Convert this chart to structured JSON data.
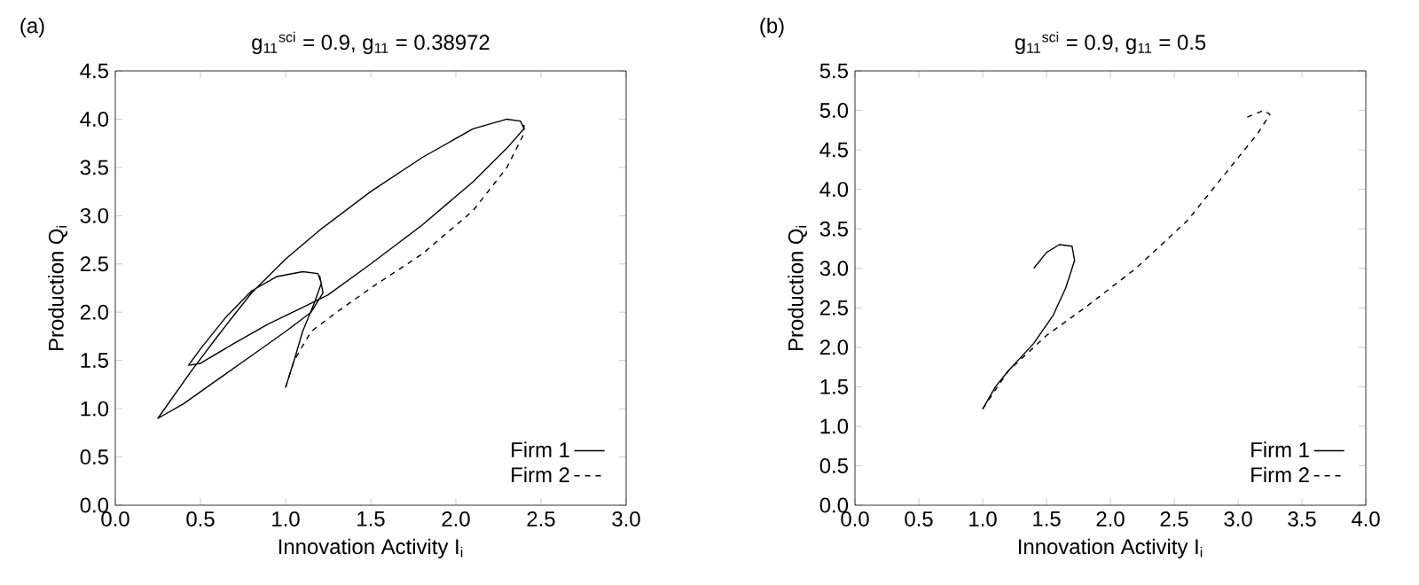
{
  "chart_data": [
    {
      "type": "line",
      "title": "g$_{11}$$^{sci}$ = 0.9,  g$_{11}$ = 0.38972",
      "xlabel": "Innovation Activity I$_{i}$",
      "ylabel": "Production Q$_{i}$",
      "annotations": [
        "(a)"
      ],
      "xlim": [
        0,
        3
      ],
      "ylim": [
        0,
        4.5
      ],
      "xticks": [
        {
          "value": 0,
          "label": "0.0"
        },
        0.5,
        {
          "value": 1,
          "label": "1.0"
        },
        1.5,
        {
          "value": 2,
          "label": "2.0"
        },
        2.5,
        {
          "value": 3,
          "label": "3.0"
        }
      ],
      "yticks": [
        {
          "value": 0,
          "label": "0.0"
        },
        0.5,
        {
          "value": 1,
          "label": "1.0"
        },
        1.5,
        {
          "value": 2,
          "label": "2.0"
        },
        2.5,
        {
          "value": 3,
          "label": "3.0"
        },
        3.5,
        {
          "value": 4,
          "label": "4.0"
        },
        4.5
      ],
      "legend": "bottom right",
      "series": [
        {
          "name": "Firm 1",
          "color": "#000000",
          "line_style": "solid",
          "x": [
            1.0,
            1.05,
            1.1,
            1.17,
            1.21,
            1.19,
            1.1,
            0.95,
            0.8,
            0.65,
            0.5,
            0.43,
            0.5,
            0.7,
            0.9,
            1.1,
            1.25,
            1.5,
            1.8,
            2.1,
            2.3,
            2.4,
            2.38,
            2.3,
            2.1,
            1.8,
            1.5,
            1.2,
            1.0,
            0.8,
            0.6,
            0.45,
            0.25,
            0.4,
            0.6,
            0.8,
            1.0,
            1.15,
            1.22,
            1.2
          ],
          "values": [
            1.22,
            1.5,
            1.8,
            2.1,
            2.3,
            2.4,
            2.42,
            2.37,
            2.22,
            1.95,
            1.62,
            1.45,
            1.47,
            1.68,
            1.88,
            2.05,
            2.18,
            2.5,
            2.9,
            3.35,
            3.7,
            3.9,
            3.98,
            4.0,
            3.9,
            3.6,
            3.25,
            2.85,
            2.55,
            2.2,
            1.75,
            1.4,
            0.9,
            1.05,
            1.3,
            1.55,
            1.8,
            2.0,
            2.2,
            2.38
          ]
        },
        {
          "name": "Firm 2",
          "color": "#000000",
          "line_style": "dashed",
          "x": [
            1.0,
            1.05,
            1.15,
            1.3,
            1.5,
            1.8,
            2.1,
            2.3,
            2.4,
            2.4
          ],
          "values": [
            1.22,
            1.5,
            1.8,
            2.0,
            2.25,
            2.6,
            3.05,
            3.5,
            3.85,
            3.95
          ]
        }
      ]
    },
    {
      "type": "line",
      "title": "g$_{11}$$^{sci}$ = 0.9,  g$_{11}$ = 0.5",
      "xlabel": "Innovation Activity I$_{i}$",
      "ylabel": "Production Q$_{i}$",
      "annotations": [
        "(b)"
      ],
      "xlim": [
        0,
        4
      ],
      "ylim": [
        0,
        5.5
      ],
      "xticks": [
        {
          "value": 0,
          "label": "0.0"
        },
        0.5,
        {
          "value": 1,
          "label": "1.0"
        },
        1.5,
        {
          "value": 2,
          "label": "2.0"
        },
        2.5,
        {
          "value": 3,
          "label": "3.0"
        },
        3.5,
        {
          "value": 4,
          "label": "4.0"
        }
      ],
      "yticks": [
        {
          "value": 0,
          "label": "0.0"
        },
        0.5,
        {
          "value": 1,
          "label": "1.0"
        },
        1.5,
        {
          "value": 2,
          "label": "2.0"
        },
        2.5,
        {
          "value": 3,
          "label": "3.0"
        },
        3.5,
        {
          "value": 4,
          "label": "4.0"
        },
        4.5,
        {
          "value": 5,
          "label": "5.0"
        },
        5.5
      ],
      "legend": "bottom right",
      "series": [
        {
          "name": "Firm 1",
          "color": "#000000",
          "line_style": "solid",
          "x": [
            1.0,
            1.1,
            1.2,
            1.4,
            1.55,
            1.65,
            1.72,
            1.7,
            1.6,
            1.5,
            1.4
          ],
          "values": [
            1.22,
            1.5,
            1.7,
            2.05,
            2.4,
            2.75,
            3.1,
            3.28,
            3.3,
            3.2,
            3.0
          ]
        },
        {
          "name": "Firm 2",
          "color": "#000000",
          "line_style": "dashed",
          "x": [
            1.0,
            1.2,
            1.5,
            1.8,
            2.2,
            2.6,
            2.9,
            3.15,
            3.25,
            3.2,
            3.05
          ],
          "values": [
            1.22,
            1.7,
            2.15,
            2.5,
            3.0,
            3.6,
            4.2,
            4.7,
            4.95,
            5.0,
            4.9
          ]
        }
      ]
    }
  ]
}
